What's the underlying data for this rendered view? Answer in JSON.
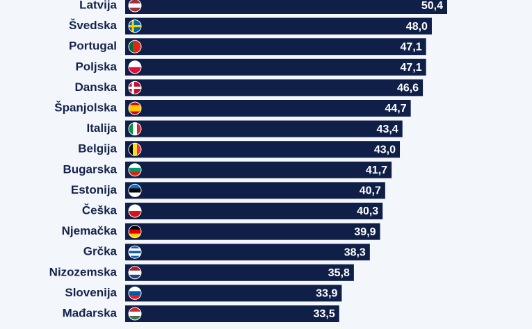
{
  "chart_data": {
    "type": "bar",
    "orientation": "horizontal",
    "categories": [
      "Latvija",
      "Švedska",
      "Portugal",
      "Poljska",
      "Danska",
      "Španjolska",
      "Italija",
      "Belgija",
      "Bugarska",
      "Estonija",
      "Češka",
      "Njemačka",
      "Grčka",
      "Nizozemska",
      "Slovenija",
      "Mađarska"
    ],
    "values": [
      50.4,
      48.0,
      47.1,
      47.1,
      46.6,
      44.7,
      43.4,
      43.0,
      41.7,
      40.7,
      40.3,
      39.9,
      38.3,
      35.8,
      33.9,
      33.5
    ],
    "value_labels": [
      "50,4",
      "48,0",
      "47,1",
      "47,1",
      "46,6",
      "44,7",
      "43,4",
      "43,0",
      "41,7",
      "40,7",
      "40,3",
      "39,9",
      "38,3",
      "35,8",
      "33,9",
      "33,5"
    ],
    "color": "#0f1f47"
  }
}
